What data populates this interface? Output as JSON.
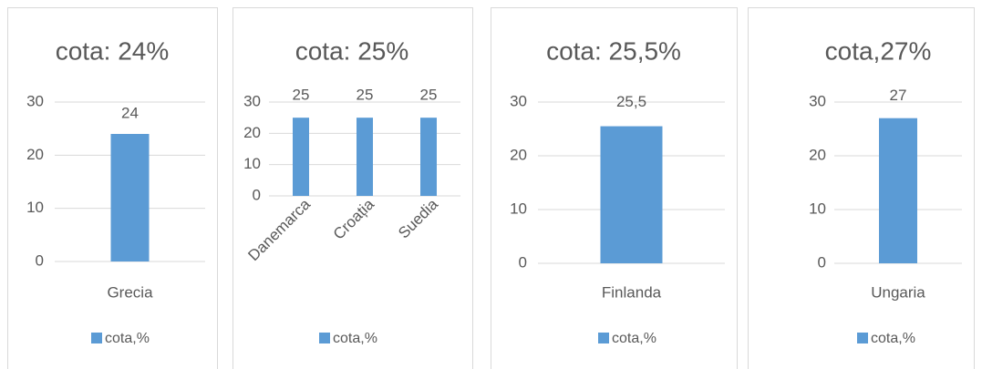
{
  "chart_data": [
    {
      "type": "bar",
      "title": "cota: 24%",
      "categories": [
        "Grecia"
      ],
      "series": [
        {
          "name": "cota,%",
          "color": "#5b9bd5",
          "values": [
            24
          ]
        }
      ],
      "ylim": [
        0,
        30
      ],
      "yticks": [
        0,
        10,
        20,
        30
      ],
      "grid": true,
      "legend": "bottom"
    },
    {
      "type": "bar",
      "title": "cota: 25%",
      "categories": [
        "Danemarca",
        "Croația",
        "Suedia"
      ],
      "series": [
        {
          "name": "cota,%",
          "color": "#5b9bd5",
          "values": [
            25,
            25,
            25
          ]
        }
      ],
      "ylim": [
        0,
        30
      ],
      "yticks": [
        0,
        10,
        20,
        30
      ],
      "grid": true,
      "legend": "bottom"
    },
    {
      "type": "bar",
      "title": "cota: 25,5%",
      "categories": [
        "Finlanda"
      ],
      "series": [
        {
          "name": "cota,%",
          "color": "#5b9bd5",
          "values": [
            25.5
          ],
          "value_labels": [
            "25,5"
          ]
        }
      ],
      "ylim": [
        0,
        30
      ],
      "yticks": [
        0,
        10,
        20,
        30
      ],
      "grid": true,
      "legend": "bottom"
    },
    {
      "type": "bar",
      "title": "cota,27%",
      "categories": [
        "Ungaria"
      ],
      "series": [
        {
          "name": "cota,%",
          "color": "#5b9bd5",
          "values": [
            27
          ]
        }
      ],
      "ylim": [
        0,
        30
      ],
      "yticks": [
        0,
        10,
        20,
        30
      ],
      "grid": true,
      "legend": "bottom"
    }
  ]
}
